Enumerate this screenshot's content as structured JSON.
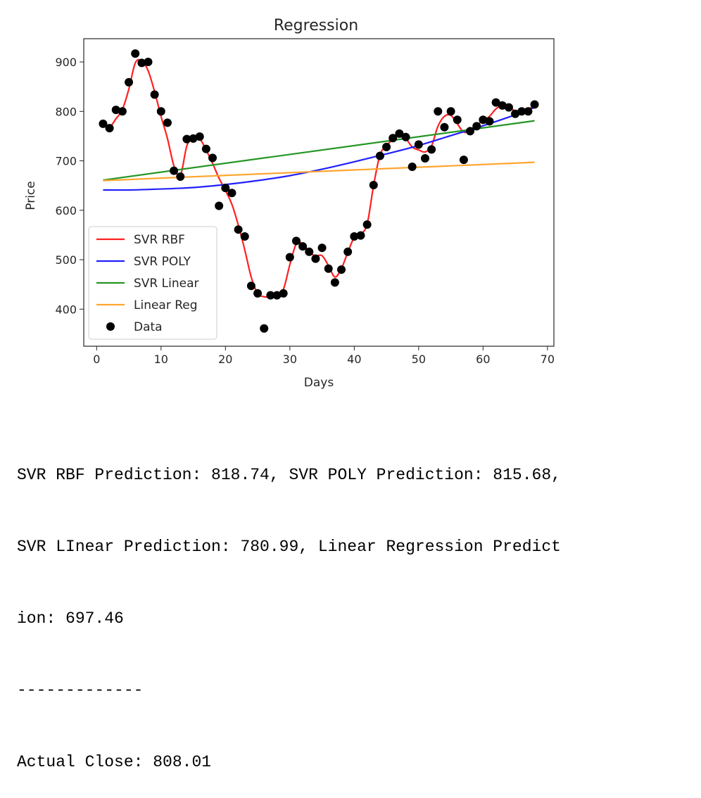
{
  "chart_data": {
    "type": "line",
    "title": "Regression",
    "xlabel": "Days",
    "ylabel": "Price",
    "xlim": [
      -2,
      71
    ],
    "ylim": [
      325,
      947
    ],
    "xticks": [
      0,
      10,
      20,
      30,
      40,
      50,
      60,
      70
    ],
    "yticks": [
      400,
      500,
      600,
      700,
      800,
      900
    ],
    "grid": false,
    "legend_position": "lower-left",
    "legend": [
      "SVR RBF",
      "SVR POLY",
      "SVR Linear",
      "Linear Reg",
      "Data"
    ],
    "data": {
      "x": [
        1,
        2,
        3,
        4,
        5,
        6,
        7,
        8,
        9,
        10,
        11,
        12,
        13,
        14,
        15,
        16,
        17,
        18,
        19,
        20,
        21,
        22,
        23,
        24,
        25,
        26,
        27,
        28,
        29,
        30,
        31,
        32,
        33,
        34,
        35,
        36,
        37,
        38,
        39,
        40,
        41,
        42,
        43,
        44,
        45,
        46,
        47,
        48,
        49,
        50,
        51,
        52,
        53,
        54,
        55,
        56,
        57,
        58,
        59,
        60,
        61,
        62,
        63,
        64,
        65,
        66,
        67,
        68
      ],
      "y": [
        775,
        766,
        803,
        800,
        859,
        917,
        898,
        900,
        834,
        800,
        777,
        680,
        668,
        744,
        745,
        749,
        724,
        706,
        609,
        645,
        635,
        561,
        547,
        447,
        432,
        361,
        428,
        428,
        432,
        505,
        538,
        527,
        516,
        502,
        524,
        482,
        454,
        480,
        516,
        547,
        549,
        571,
        651,
        710,
        728,
        746,
        755,
        748,
        688,
        733,
        705,
        723,
        800,
        768,
        800,
        783,
        702,
        760,
        770,
        783,
        780,
        818,
        812,
        808,
        795,
        800,
        800,
        814
      ],
      "color": "#000000",
      "marker": "circle"
    },
    "series": [
      {
        "name": "SVR RBF",
        "color": "#ff2020",
        "x": [
          1,
          2,
          3,
          4,
          5,
          6,
          7,
          8,
          9,
          10,
          11,
          12,
          13,
          14,
          15,
          16,
          17,
          18,
          19,
          20,
          21,
          22,
          23,
          24,
          25,
          26,
          27,
          28,
          29,
          30,
          31,
          32,
          33,
          34,
          35,
          36,
          37,
          38,
          39,
          40,
          41,
          42,
          43,
          44,
          45,
          46,
          47,
          48,
          49,
          50,
          51,
          52,
          53,
          54,
          55,
          56,
          57,
          58,
          59,
          60,
          61,
          62,
          63,
          64,
          65,
          66,
          67,
          68
        ],
        "y": [
          773,
          768,
          785,
          804,
          845,
          898,
          902,
          882,
          840,
          790,
          745,
          690,
          670,
          730,
          748,
          745,
          722,
          695,
          665,
          640,
          612,
          570,
          520,
          465,
          432,
          425,
          425,
          428,
          440,
          490,
          532,
          532,
          515,
          508,
          508,
          488,
          465,
          482,
          515,
          545,
          552,
          572,
          650,
          712,
          730,
          744,
          752,
          745,
          728,
          722,
          718,
          730,
          770,
          790,
          792,
          775,
          758,
          762,
          772,
          782,
          790,
          805,
          812,
          810,
          800,
          800,
          805,
          810
        ]
      },
      {
        "name": "SVR POLY",
        "color": "#2020ff",
        "x": [
          1,
          5,
          10,
          15,
          20,
          25,
          30,
          35,
          40,
          45,
          50,
          55,
          60,
          65,
          68
        ],
        "y": [
          641,
          641,
          643,
          646,
          652,
          660,
          670,
          683,
          698,
          714,
          731,
          751,
          771,
          793,
          808
        ]
      },
      {
        "name": "SVR Linear",
        "color": "#259625",
        "x": [
          1,
          68
        ],
        "y": [
          661,
          781
        ]
      },
      {
        "name": "Linear Reg",
        "color": "#ffa52f",
        "x": [
          1,
          68
        ],
        "y": [
          660,
          697
        ]
      }
    ]
  },
  "output_lines": [
    "SVR RBF Prediction: 818.74, SVR POLY Prediction: 815.68,",
    "SVR LInear Prediction: 780.99, Linear Regression Predict",
    "ion: 697.46",
    "-------------",
    "Actual Close: 808.01"
  ]
}
